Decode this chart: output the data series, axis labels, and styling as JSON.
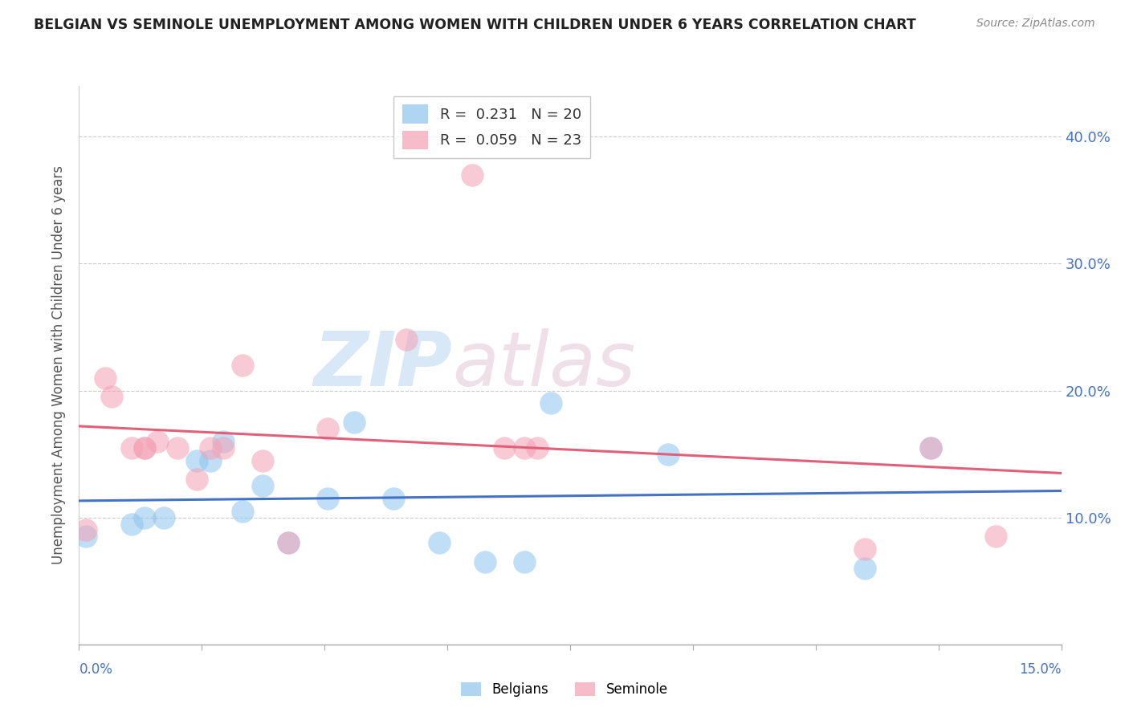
{
  "title": "BELGIAN VS SEMINOLE UNEMPLOYMENT AMONG WOMEN WITH CHILDREN UNDER 6 YEARS CORRELATION CHART",
  "source": "Source: ZipAtlas.com",
  "ylabel": "Unemployment Among Women with Children Under 6 years",
  "xlim": [
    0.0,
    0.15
  ],
  "ylim": [
    0.0,
    0.44
  ],
  "yticks": [
    0.0,
    0.1,
    0.2,
    0.3,
    0.4
  ],
  "ytick_labels": [
    "",
    "10.0%",
    "20.0%",
    "30.0%",
    "40.0%"
  ],
  "legend_blue_R": "0.231",
  "legend_blue_N": "20",
  "legend_pink_R": "0.059",
  "legend_pink_N": "23",
  "belgians_x": [
    0.001,
    0.008,
    0.01,
    0.013,
    0.018,
    0.02,
    0.022,
    0.025,
    0.028,
    0.032,
    0.038,
    0.042,
    0.048,
    0.055,
    0.062,
    0.068,
    0.072,
    0.09,
    0.12,
    0.13
  ],
  "belgians_y": [
    0.085,
    0.095,
    0.1,
    0.1,
    0.145,
    0.145,
    0.16,
    0.105,
    0.125,
    0.08,
    0.115,
    0.175,
    0.115,
    0.08,
    0.065,
    0.065,
    0.19,
    0.15,
    0.06,
    0.155
  ],
  "seminole_x": [
    0.001,
    0.004,
    0.005,
    0.008,
    0.01,
    0.01,
    0.012,
    0.015,
    0.018,
    0.02,
    0.022,
    0.025,
    0.028,
    0.032,
    0.038,
    0.05,
    0.06,
    0.065,
    0.068,
    0.07,
    0.12,
    0.13,
    0.14
  ],
  "seminole_y": [
    0.09,
    0.21,
    0.195,
    0.155,
    0.155,
    0.155,
    0.16,
    0.155,
    0.13,
    0.155,
    0.155,
    0.22,
    0.145,
    0.08,
    0.17,
    0.24,
    0.37,
    0.155,
    0.155,
    0.155,
    0.075,
    0.155,
    0.085
  ],
  "blue_color": "#8DC4ED",
  "pink_color": "#F4A0B4",
  "blue_line_color": "#4472C4",
  "pink_line_color": "#E0607A",
  "background_color": "#FFFFFF",
  "grid_color": "#CCCCCC",
  "title_color": "#222222",
  "axis_label_color": "#555555",
  "watermark_zip_color": "#C8D8EC",
  "watermark_atlas_color": "#D8C8D0"
}
